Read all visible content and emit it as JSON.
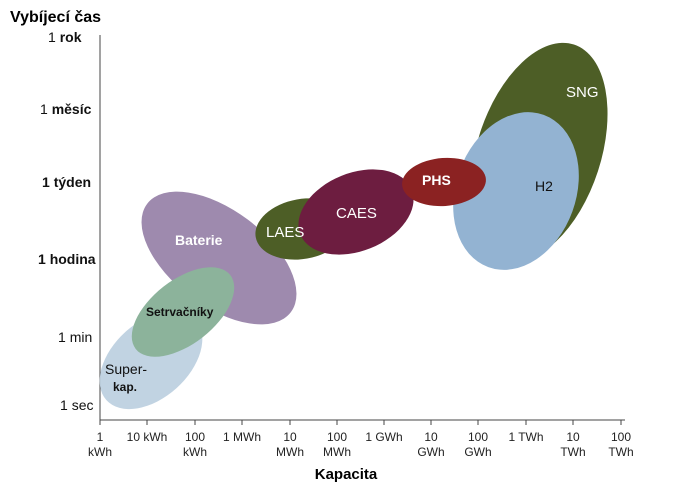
{
  "y_axis": {
    "title": "Vybíjecí čas",
    "ticks": [
      {
        "num": "1",
        "word": "rok",
        "bold": true
      },
      {
        "num": "1",
        "word": "měsíc",
        "bold": true
      },
      {
        "num": "1",
        "word": "týden",
        "bold": true,
        "numbold": true
      },
      {
        "num": "1",
        "word": "hodina",
        "bold": true,
        "numbold": true
      },
      {
        "num": "1",
        "word": "min",
        "bold": false
      },
      {
        "num": "1",
        "word": "sec",
        "bold": false
      }
    ]
  },
  "x_axis": {
    "title": "Kapacita",
    "ticks": [
      [
        "1",
        "kWh"
      ],
      [
        "10 kWh",
        ""
      ],
      [
        "100",
        "kWh"
      ],
      [
        "1 MWh",
        ""
      ],
      [
        "10",
        "MWh"
      ],
      [
        "100",
        "MWh"
      ],
      [
        "1 GWh",
        ""
      ],
      [
        "10",
        "GWh"
      ],
      [
        "100",
        "GWh"
      ],
      [
        "1 TWh",
        ""
      ],
      [
        "10",
        "TWh"
      ],
      [
        "100",
        "TWh"
      ]
    ]
  },
  "technologies": [
    {
      "id": "sng",
      "label": "SNG",
      "color": "#4d5e26"
    },
    {
      "id": "h2",
      "label": "H2",
      "color": "#93b3d2"
    },
    {
      "id": "phs",
      "label": "PHS",
      "color": "#8b2222"
    },
    {
      "id": "laes",
      "label": "LAES",
      "color": "#4d5e26"
    },
    {
      "id": "caes",
      "label": "CAES",
      "color": "#6d1d40"
    },
    {
      "id": "baterie",
      "label": "Baterie",
      "color": "#9e8aae"
    },
    {
      "id": "supercap",
      "label_line1": "Super-",
      "label_line2": "kap.",
      "color": "#bccfdf"
    },
    {
      "id": "setrvacniky",
      "label": "Setrvačníky",
      "color": "#8cb39b"
    }
  ]
}
